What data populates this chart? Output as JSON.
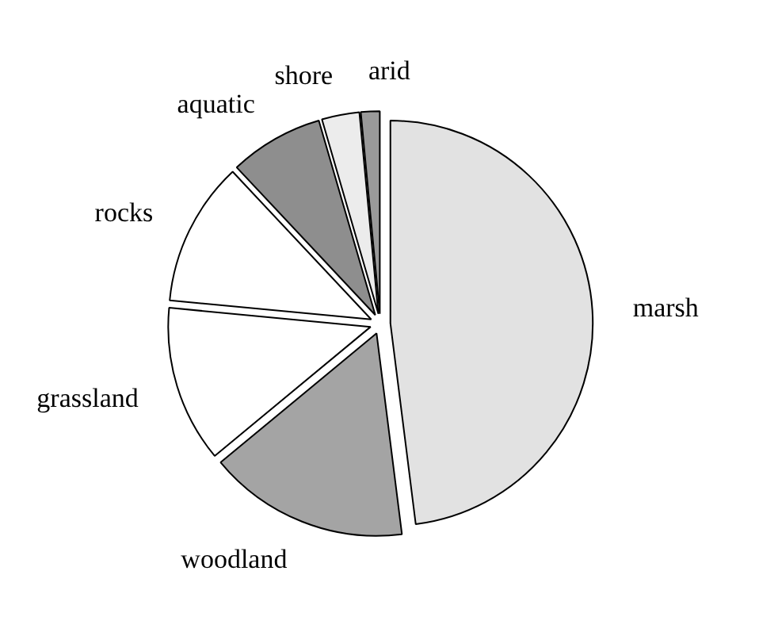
{
  "chart_data": {
    "type": "pie",
    "categories": [
      "marsh",
      "woodland",
      "grassland",
      "rocks",
      "aquatic",
      "shore",
      "arid"
    ],
    "values": [
      48,
      16,
      12.5,
      11.5,
      7.5,
      3,
      1.5
    ],
    "colors": [
      "#e2e2e2",
      "#a4a4a4",
      "#ffffff",
      "#ffffff",
      "#8e8e8e",
      "#ececec",
      "#9a9a9a"
    ]
  }
}
